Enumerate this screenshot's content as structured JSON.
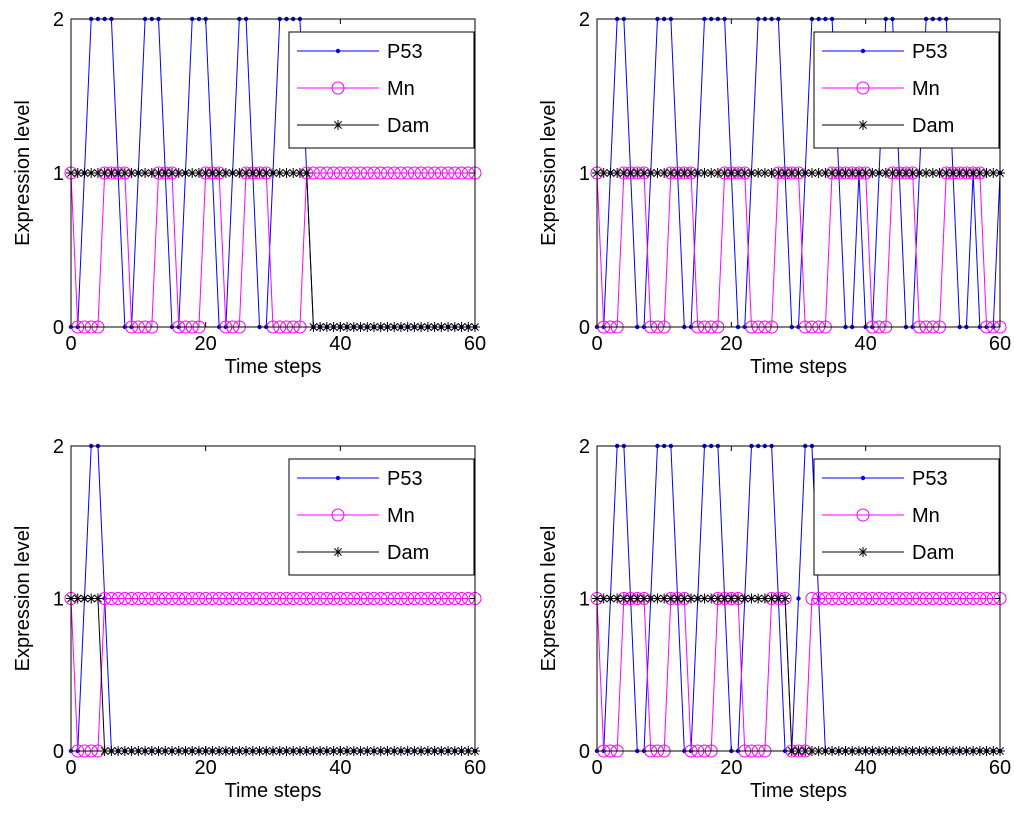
{
  "chart_data": [
    {
      "type": "line",
      "xlabel": "Time steps",
      "ylabel": "Expression level",
      "xlim": [
        0,
        60
      ],
      "ylim": [
        0,
        2
      ],
      "xticks": [
        0,
        20,
        40,
        60
      ],
      "yticks": [
        0,
        1,
        2
      ],
      "grid": false,
      "legend": "top-right",
      "series": [
        {
          "name": "P53",
          "color": "#0000ff",
          "marker": "dot",
          "values": [
            0,
            0,
            1,
            2,
            2,
            2,
            2,
            1,
            0,
            0,
            1,
            2,
            2,
            2,
            1,
            0,
            0,
            1,
            2,
            2,
            2,
            1,
            0,
            0,
            1,
            2,
            2,
            1,
            0,
            0,
            1,
            2,
            2,
            2,
            2,
            1,
            0,
            0,
            0,
            0,
            0,
            0,
            0,
            0,
            0,
            0,
            0,
            0,
            0,
            0,
            0,
            0,
            0,
            0,
            0,
            0,
            0,
            0,
            0,
            0,
            0
          ]
        },
        {
          "name": "Mn",
          "color": "#ff00ff",
          "marker": "circle",
          "values": [
            1,
            0,
            0,
            0,
            0,
            1,
            1,
            1,
            1,
            0,
            0,
            0,
            0,
            1,
            1,
            1,
            0,
            0,
            0,
            0,
            1,
            1,
            1,
            0,
            0,
            0,
            1,
            1,
            1,
            1,
            0,
            0,
            0,
            0,
            0,
            1,
            1,
            1,
            1,
            1,
            1,
            1,
            1,
            1,
            1,
            1,
            1,
            1,
            1,
            1,
            1,
            1,
            1,
            1,
            1,
            1,
            1,
            1,
            1,
            1,
            1
          ]
        },
        {
          "name": "Dam",
          "color": "#000000",
          "marker": "asterisk",
          "values": [
            1,
            1,
            1,
            1,
            1,
            1,
            1,
            1,
            1,
            1,
            1,
            1,
            1,
            1,
            1,
            1,
            1,
            1,
            1,
            1,
            1,
            1,
            1,
            1,
            1,
            1,
            1,
            1,
            1,
            1,
            1,
            1,
            1,
            1,
            1,
            1,
            0,
            0,
            0,
            0,
            0,
            0,
            0,
            0,
            0,
            0,
            0,
            0,
            0,
            0,
            0,
            0,
            0,
            0,
            0,
            0,
            0,
            0,
            0,
            0,
            0
          ]
        }
      ]
    },
    {
      "type": "line",
      "xlabel": "Time steps",
      "ylabel": "Expression level",
      "xlim": [
        0,
        60
      ],
      "ylim": [
        0,
        2
      ],
      "xticks": [
        0,
        20,
        40,
        60
      ],
      "yticks": [
        0,
        1,
        2
      ],
      "grid": false,
      "legend": "top-right",
      "series": [
        {
          "name": "P53",
          "color": "#0000ff",
          "marker": "dot",
          "values": [
            0,
            0,
            1,
            2,
            2,
            1,
            0,
            0,
            1,
            2,
            2,
            2,
            1,
            0,
            0,
            1,
            2,
            2,
            2,
            2,
            1,
            0,
            0,
            1,
            2,
            2,
            2,
            2,
            1,
            0,
            0,
            1,
            2,
            2,
            2,
            2,
            1,
            0,
            0,
            1,
            0,
            0,
            1,
            2,
            2,
            1,
            0,
            0,
            1,
            2,
            2,
            2,
            2,
            1,
            0,
            0,
            1,
            0,
            0,
            0,
            1
          ]
        },
        {
          "name": "Mn",
          "color": "#ff00ff",
          "marker": "circle",
          "values": [
            1,
            0,
            0,
            0,
            1,
            1,
            1,
            1,
            0,
            0,
            0,
            1,
            1,
            1,
            1,
            0,
            0,
            0,
            0,
            1,
            1,
            1,
            1,
            0,
            0,
            0,
            0,
            1,
            1,
            1,
            1,
            0,
            0,
            0,
            0,
            1,
            1,
            1,
            1,
            1,
            1,
            0,
            0,
            0,
            1,
            1,
            1,
            1,
            0,
            0,
            0,
            0,
            1,
            1,
            1,
            1,
            1,
            1,
            0,
            0,
            0
          ]
        },
        {
          "name": "Dam",
          "color": "#000000",
          "marker": "asterisk",
          "values": [
            1,
            1,
            1,
            1,
            1,
            1,
            1,
            1,
            1,
            1,
            1,
            1,
            1,
            1,
            1,
            1,
            1,
            1,
            1,
            1,
            1,
            1,
            1,
            1,
            1,
            1,
            1,
            1,
            1,
            1,
            1,
            1,
            1,
            1,
            1,
            1,
            1,
            1,
            1,
            1,
            1,
            1,
            1,
            1,
            1,
            1,
            1,
            1,
            1,
            1,
            1,
            1,
            1,
            1,
            1,
            1,
            1,
            1,
            1,
            1,
            1
          ]
        }
      ]
    },
    {
      "type": "line",
      "xlabel": "Time steps",
      "ylabel": "Expression level",
      "xlim": [
        0,
        60
      ],
      "ylim": [
        0,
        2
      ],
      "xticks": [
        0,
        20,
        40,
        60
      ],
      "yticks": [
        0,
        1,
        2
      ],
      "grid": false,
      "legend": "top-right",
      "series": [
        {
          "name": "P53",
          "color": "#0000ff",
          "marker": "dot",
          "values": [
            0,
            0,
            1,
            2,
            2,
            1,
            0,
            0,
            0,
            0,
            0,
            0,
            0,
            0,
            0,
            0,
            0,
            0,
            0,
            0,
            0,
            0,
            0,
            0,
            0,
            0,
            0,
            0,
            0,
            0,
            0,
            0,
            0,
            0,
            0,
            0,
            0,
            0,
            0,
            0,
            0,
            0,
            0,
            0,
            0,
            0,
            0,
            0,
            0,
            0,
            0,
            0,
            0,
            0,
            0,
            0,
            0,
            0,
            0,
            0,
            0
          ]
        },
        {
          "name": "Mn",
          "color": "#ff00ff",
          "marker": "circle",
          "values": [
            1,
            0,
            0,
            0,
            0,
            1,
            1,
            1,
            1,
            1,
            1,
            1,
            1,
            1,
            1,
            1,
            1,
            1,
            1,
            1,
            1,
            1,
            1,
            1,
            1,
            1,
            1,
            1,
            1,
            1,
            1,
            1,
            1,
            1,
            1,
            1,
            1,
            1,
            1,
            1,
            1,
            1,
            1,
            1,
            1,
            1,
            1,
            1,
            1,
            1,
            1,
            1,
            1,
            1,
            1,
            1,
            1,
            1,
            1,
            1,
            1
          ]
        },
        {
          "name": "Dam",
          "color": "#000000",
          "marker": "asterisk",
          "values": [
            1,
            1,
            1,
            1,
            1,
            0,
            0,
            0,
            0,
            0,
            0,
            0,
            0,
            0,
            0,
            0,
            0,
            0,
            0,
            0,
            0,
            0,
            0,
            0,
            0,
            0,
            0,
            0,
            0,
            0,
            0,
            0,
            0,
            0,
            0,
            0,
            0,
            0,
            0,
            0,
            0,
            0,
            0,
            0,
            0,
            0,
            0,
            0,
            0,
            0,
            0,
            0,
            0,
            0,
            0,
            0,
            0,
            0,
            0,
            0,
            0
          ]
        }
      ]
    },
    {
      "type": "line",
      "xlabel": "Time steps",
      "ylabel": "Expression level",
      "xlim": [
        0,
        60
      ],
      "ylim": [
        0,
        2
      ],
      "xticks": [
        0,
        20,
        40,
        60
      ],
      "yticks": [
        0,
        1,
        2
      ],
      "grid": false,
      "legend": "top-right",
      "series": [
        {
          "name": "P53",
          "color": "#0000ff",
          "marker": "dot",
          "values": [
            0,
            0,
            1,
            2,
            2,
            1,
            0,
            0,
            1,
            2,
            2,
            2,
            1,
            0,
            0,
            1,
            2,
            2,
            2,
            1,
            0,
            0,
            1,
            2,
            2,
            2,
            2,
            1,
            0,
            0,
            1,
            2,
            2,
            1,
            0,
            0,
            0,
            0,
            0,
            0,
            0,
            0,
            0,
            0,
            0,
            0,
            0,
            0,
            0,
            0,
            0,
            0,
            0,
            0,
            0,
            0,
            0,
            0,
            0,
            0,
            0
          ]
        },
        {
          "name": "Mn",
          "color": "#ff00ff",
          "marker": "circle",
          "values": [
            1,
            0,
            0,
            0,
            1,
            1,
            1,
            1,
            0,
            0,
            0,
            1,
            1,
            1,
            0,
            0,
            0,
            0,
            1,
            1,
            1,
            1,
            0,
            0,
            0,
            0,
            1,
            1,
            1,
            0,
            0,
            0,
            1,
            1,
            1,
            1,
            1,
            1,
            1,
            1,
            1,
            1,
            1,
            1,
            1,
            1,
            1,
            1,
            1,
            1,
            1,
            1,
            1,
            1,
            1,
            1,
            1,
            1,
            1,
            1,
            1
          ]
        },
        {
          "name": "Dam",
          "color": "#000000",
          "marker": "asterisk",
          "values": [
            1,
            1,
            1,
            1,
            1,
            1,
            1,
            1,
            1,
            1,
            1,
            1,
            1,
            1,
            1,
            1,
            1,
            1,
            1,
            1,
            1,
            1,
            1,
            1,
            1,
            1,
            1,
            1,
            1,
            0,
            0,
            0,
            0,
            0,
            0,
            0,
            0,
            0,
            0,
            0,
            0,
            0,
            0,
            0,
            0,
            0,
            0,
            0,
            0,
            0,
            0,
            0,
            0,
            0,
            0,
            0,
            0,
            0,
            0,
            0,
            0
          ]
        }
      ]
    }
  ]
}
